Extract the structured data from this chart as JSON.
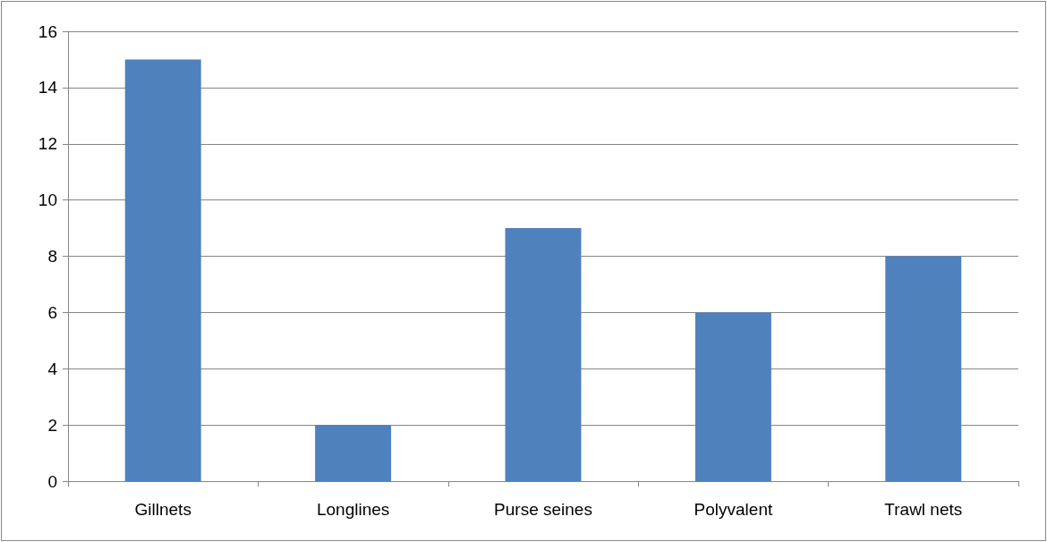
{
  "chart_data": {
    "type": "bar",
    "categories": [
      "Gillnets",
      "Longlines",
      "Purse seines",
      "Polyvalent",
      "Trawl nets"
    ],
    "values": [
      15,
      2,
      9,
      6,
      8
    ],
    "color": "#4f81bd",
    "ylim": [
      0,
      16
    ],
    "yticks": [
      0,
      2,
      4,
      6,
      8,
      10,
      12,
      14,
      16
    ],
    "grid": true
  }
}
